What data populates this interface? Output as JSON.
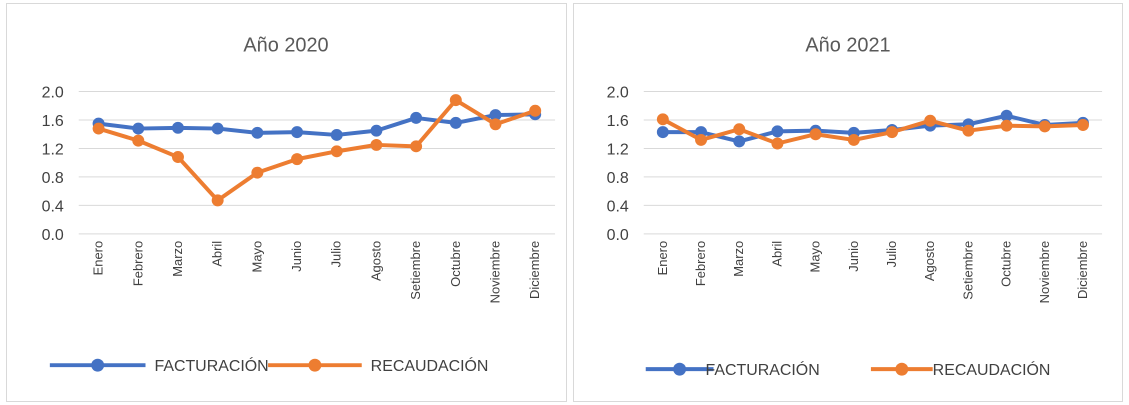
{
  "chart_data": [
    {
      "type": "line",
      "title": "Año 2020",
      "xlabel": "",
      "ylabel": "",
      "ylim": [
        0,
        2.0
      ],
      "yticks": [
        "2.0",
        "1.6",
        "1.2",
        "0.8",
        "0.4",
        "0.0"
      ],
      "grid": true,
      "legend": "bottom",
      "categories": [
        "Enero",
        "Febrero",
        "Marzo",
        "Abril",
        "Mayo",
        "Junio",
        "Julio",
        "Agosto",
        "Setiembre",
        "Octubre",
        "Noviembre",
        "Diciembre"
      ],
      "series": [
        {
          "name": "FACTURACIÓN",
          "color": "#4472c4",
          "values": [
            1.55,
            1.48,
            1.49,
            1.48,
            1.42,
            1.43,
            1.39,
            1.45,
            1.63,
            1.56,
            1.67,
            1.68
          ]
        },
        {
          "name": "RECAUDACIÓN",
          "color": "#ed7d31",
          "values": [
            1.48,
            1.31,
            1.08,
            0.47,
            0.86,
            1.05,
            1.16,
            1.25,
            1.23,
            1.88,
            1.54,
            1.73
          ]
        }
      ]
    },
    {
      "type": "line",
      "title": "Año 2021",
      "xlabel": "",
      "ylabel": "",
      "ylim": [
        0,
        2.0
      ],
      "yticks": [
        "2.0",
        "1.6",
        "1.2",
        "0.8",
        "0.4",
        "0.0"
      ],
      "grid": true,
      "legend": "bottom",
      "categories": [
        "Enero",
        "Febrero",
        "Marzo",
        "Abril",
        "Mayo",
        "Junio",
        "Julio",
        "Agosto",
        "Setiembre",
        "Octubre",
        "Noviembre",
        "Diciembre"
      ],
      "series": [
        {
          "name": "FACTURACIÓN",
          "color": "#4472c4",
          "values": [
            1.43,
            1.43,
            1.3,
            1.44,
            1.45,
            1.42,
            1.46,
            1.52,
            1.54,
            1.66,
            1.53,
            1.56
          ]
        },
        {
          "name": "RECAUDACIÓN",
          "color": "#ed7d31",
          "values": [
            1.61,
            1.32,
            1.47,
            1.27,
            1.4,
            1.32,
            1.43,
            1.59,
            1.45,
            1.52,
            1.51,
            1.53
          ]
        }
      ]
    }
  ]
}
